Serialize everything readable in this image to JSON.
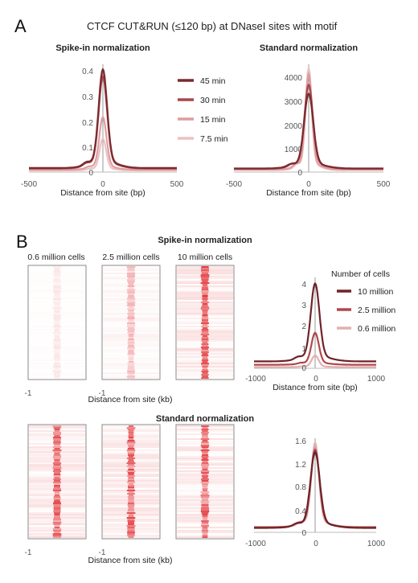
{
  "figure": {
    "panel_a": "A",
    "panel_b": "B",
    "main_title": "CTCF CUT&RUN (≤120 bp) at DNaseI sites with motif"
  },
  "colors": {
    "t45": "#7a2a2f",
    "t30": "#a8474c",
    "t15": "#df9da0",
    "t7": "#ecc2c4",
    "c10": "#6e2328",
    "c25": "#b0484c",
    "c06": "#e2b0b2",
    "heat": "#e0282c",
    "axis": "#9a9a9a"
  },
  "legend_a": {
    "items": [
      "45 min",
      "30 min",
      "15 min",
      "7.5 min"
    ]
  },
  "legend_b": {
    "title": "Number of cells",
    "items": [
      "10 million",
      "2.5 million",
      "0.6 million"
    ]
  },
  "heatmaps": {
    "spike_title": "Spike-in normalization",
    "standard_title": "Standard normalization",
    "columns": [
      "0.6 million cells",
      "2.5 million cells",
      "10 million cells"
    ],
    "xlabel": "Distance from site (kb)",
    "xlabel_bottom": "Distance from  site (kb)",
    "tick_left": "-1",
    "intensity_spike": [
      0.12,
      0.35,
      0.9
    ],
    "intensity_standard": [
      0.85,
      0.85,
      0.85
    ]
  },
  "chart_data": [
    {
      "id": "a-spike",
      "type": "line",
      "title": "Spike-in normalization",
      "xlabel": "Distance from site (bp)",
      "xlim": [
        -500,
        500
      ],
      "ylim": [
        0,
        0.45
      ],
      "x_ticks": [
        "-500",
        "0",
        "500"
      ],
      "y_ticks": [
        "0",
        "0.1",
        "0.2",
        "0.3",
        "0.4"
      ],
      "series": [
        {
          "name": "45 min",
          "peak": 0.43,
          "baseline": 0.017,
          "width": 28
        },
        {
          "name": "30 min",
          "peak": 0.4,
          "baseline": 0.015,
          "width": 28
        },
        {
          "name": "15 min",
          "peak": 0.23,
          "baseline": 0.01,
          "width": 24
        },
        {
          "name": "7.5 min",
          "peak": 0.14,
          "baseline": 0.007,
          "width": 22
        }
      ]
    },
    {
      "id": "a-standard",
      "type": "line",
      "title": "Standard normalization",
      "xlabel": "Distance from site (bp)",
      "xlim": [
        -500,
        500
      ],
      "ylim": [
        0,
        4800
      ],
      "x_ticks": [
        "-500",
        "0",
        "500"
      ],
      "y_ticks": [
        "0",
        "1000",
        "2000",
        "3000",
        "4000"
      ],
      "series": [
        {
          "name": "45 min",
          "peak": 3500,
          "baseline": 160,
          "width": 30
        },
        {
          "name": "30 min",
          "peak": 3900,
          "baseline": 150,
          "width": 28
        },
        {
          "name": "15 min",
          "peak": 4400,
          "baseline": 110,
          "width": 22
        },
        {
          "name": "7.5 min",
          "peak": 4650,
          "baseline": 90,
          "width": 20
        }
      ]
    },
    {
      "id": "b-spike",
      "type": "line",
      "xlabel": "Distance from site (bp)",
      "xlim": [
        -1000,
        1000
      ],
      "ylim": [
        0,
        4.6
      ],
      "x_ticks": [
        "-1000",
        "0",
        "1000"
      ],
      "y_ticks": [
        "0",
        "1",
        "2",
        "3",
        "4"
      ],
      "series": [
        {
          "name": "10 million",
          "peak": 4.3,
          "baseline": 0.35,
          "width": 70
        },
        {
          "name": "2.5 million",
          "peak": 1.8,
          "baseline": 0.18,
          "width": 60
        },
        {
          "name": "0.6 million",
          "peak": 0.65,
          "baseline": 0.06,
          "width": 55
        }
      ]
    },
    {
      "id": "b-standard",
      "type": "line",
      "xlabel": "",
      "xlim": [
        -1000,
        1000
      ],
      "ylim": [
        0,
        1.7
      ],
      "x_ticks": [
        "-1000",
        "0",
        "1000"
      ],
      "y_ticks": [
        "0",
        "0.4",
        "0.8",
        "1.2",
        "1.6"
      ],
      "series": [
        {
          "name": "10 million",
          "peak": 1.45,
          "baseline": 0.08,
          "width": 75
        },
        {
          "name": "2.5 million",
          "peak": 1.5,
          "baseline": 0.09,
          "width": 70
        },
        {
          "name": "0.6 million",
          "peak": 1.62,
          "baseline": 0.1,
          "width": 60
        }
      ]
    }
  ]
}
